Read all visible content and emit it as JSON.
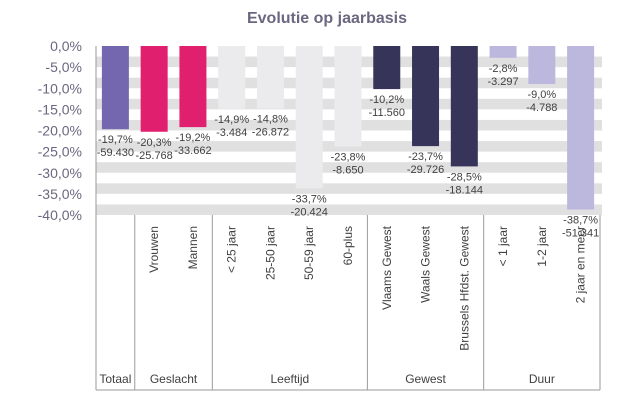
{
  "chart_data": {
    "type": "bar",
    "title": "Evolutie op jaarbasis",
    "ylim": [
      -40,
      0
    ],
    "yticks": [
      "0,0%",
      "-5,0%",
      "-10,0%",
      "-15,0%",
      "-20,0%",
      "-25,0%",
      "-30,0%",
      "-35,0%",
      "-40,0%"
    ],
    "ytick_values": [
      0,
      -5,
      -10,
      -15,
      -20,
      -25,
      -30,
      -35,
      -40
    ],
    "grid": "horizontal bands",
    "categories": [
      "Totaal",
      "Vrouwen",
      "Mannen",
      "< 25 jaar",
      "25-50 jaar",
      "50-59 jaar",
      "60-plus",
      "Vlaams Gewest",
      "Waals Gewest",
      "Brussels Hfdst. Gewest",
      "< 1 jaar",
      "1-2 jaar",
      "2 jaar en meer"
    ],
    "values": [
      -19.7,
      -20.3,
      -19.2,
      -14.9,
      -14.8,
      -33.7,
      -23.8,
      -10.2,
      -23.7,
      -28.5,
      -2.8,
      -9.0,
      -38.7
    ],
    "percent_labels": [
      "-19,7%",
      "-20,3%",
      "-19,2%",
      "-14,9%",
      "-14,8%",
      "-33,7%",
      "-23,8%",
      "-10,2%",
      "-23,7%",
      "-28,5%",
      "-2,8%",
      "-9,0%",
      "-38,7%"
    ],
    "count_labels": [
      "-59.430",
      "-25.768",
      "-33.662",
      "-3.484",
      "-26.872",
      "-20.424",
      "-8.650",
      "-11.560",
      "-29.726",
      "-18.144",
      "-3.297",
      "-4.788",
      "-51.341"
    ],
    "colors": [
      "#7467b0",
      "#e0206e",
      "#e0206e",
      "#ebebee",
      "#ebebee",
      "#ebebee",
      "#ebebee",
      "#37345a",
      "#37345a",
      "#37345a",
      "#bbb7dd",
      "#bbb7dd",
      "#bbb7dd"
    ],
    "groups": [
      {
        "name": "Totaal",
        "members": [
          0
        ]
      },
      {
        "name": "Geslacht",
        "members": [
          1,
          2
        ]
      },
      {
        "name": "Leeftijd",
        "members": [
          3,
          4,
          5,
          6
        ]
      },
      {
        "name": "Gewest",
        "members": [
          7,
          8,
          9
        ]
      },
      {
        "name": "Duur",
        "members": [
          10,
          11,
          12
        ]
      }
    ],
    "band_color": "#e0e0e0",
    "axis_color": "#9a9a9a"
  }
}
